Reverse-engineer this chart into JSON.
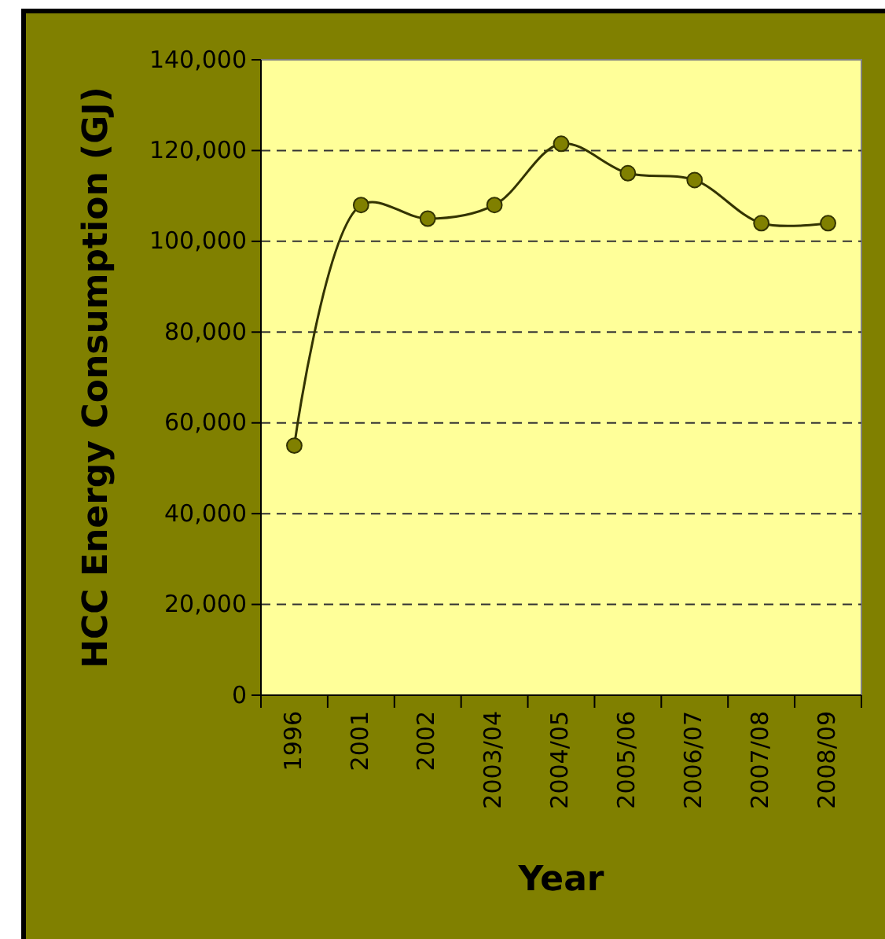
{
  "chart_data": {
    "type": "line",
    "xlabel": "Year",
    "ylabel": "HCC Energy Consumption (GJ)",
    "categories": [
      "1996",
      "2001",
      "2002",
      "2003/04",
      "2004/05",
      "2005/06",
      "2006/07",
      "2007/08",
      "2008/09"
    ],
    "series": [
      {
        "color": "#808000",
        "values": [
          55000,
          108000,
          105000,
          108000,
          121500,
          115000,
          113500,
          104000,
          104000
        ]
      }
    ],
    "ylim": [
      0,
      140000
    ],
    "yticks": [
      {
        "value": 0,
        "label": "0"
      },
      {
        "value": 20000,
        "label": "20,000"
      },
      {
        "value": 40000,
        "label": "40,000"
      },
      {
        "value": 60000,
        "label": "60,000"
      },
      {
        "value": 80000,
        "label": "80,000"
      },
      {
        "value": 100000,
        "label": "100,000"
      },
      {
        "value": 120000,
        "label": "120,000"
      },
      {
        "value": 140000,
        "label": "140,000"
      }
    ],
    "grid": "y",
    "marker": "circle",
    "line_style": "solid"
  }
}
